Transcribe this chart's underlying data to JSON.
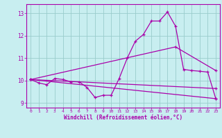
{
  "xlabel": "Windchill (Refroidissement éolien,°C)",
  "bg_color": "#c8eef0",
  "line_color": "#aa00aa",
  "grid_color": "#99cccc",
  "xlim": [
    -0.5,
    23.5
  ],
  "ylim": [
    8.8,
    13.4
  ],
  "yticks": [
    9,
    10,
    11,
    12,
    13
  ],
  "xticks": [
    0,
    1,
    2,
    3,
    4,
    5,
    6,
    7,
    8,
    9,
    10,
    11,
    12,
    13,
    14,
    15,
    16,
    17,
    18,
    19,
    20,
    21,
    22,
    23
  ],
  "line1_x": [
    0,
    1,
    2,
    3,
    4,
    5,
    6,
    7,
    8,
    9,
    10,
    11,
    12,
    13,
    14,
    15,
    16,
    17,
    18,
    19,
    20,
    21,
    22,
    23
  ],
  "line1_y": [
    10.05,
    9.9,
    9.82,
    10.1,
    10.05,
    9.95,
    9.95,
    9.7,
    9.25,
    9.35,
    9.35,
    10.1,
    11.0,
    11.75,
    12.05,
    12.65,
    12.65,
    13.05,
    12.42,
    10.5,
    10.45,
    10.42,
    10.38,
    9.2
  ],
  "line2_x": [
    0,
    23
  ],
  "line2_y": [
    10.05,
    9.2
  ],
  "line3_x": [
    0,
    23
  ],
  "line3_y": [
    10.05,
    9.65
  ],
  "line4_x": [
    0,
    18,
    23
  ],
  "line4_y": [
    10.05,
    11.5,
    10.45
  ]
}
